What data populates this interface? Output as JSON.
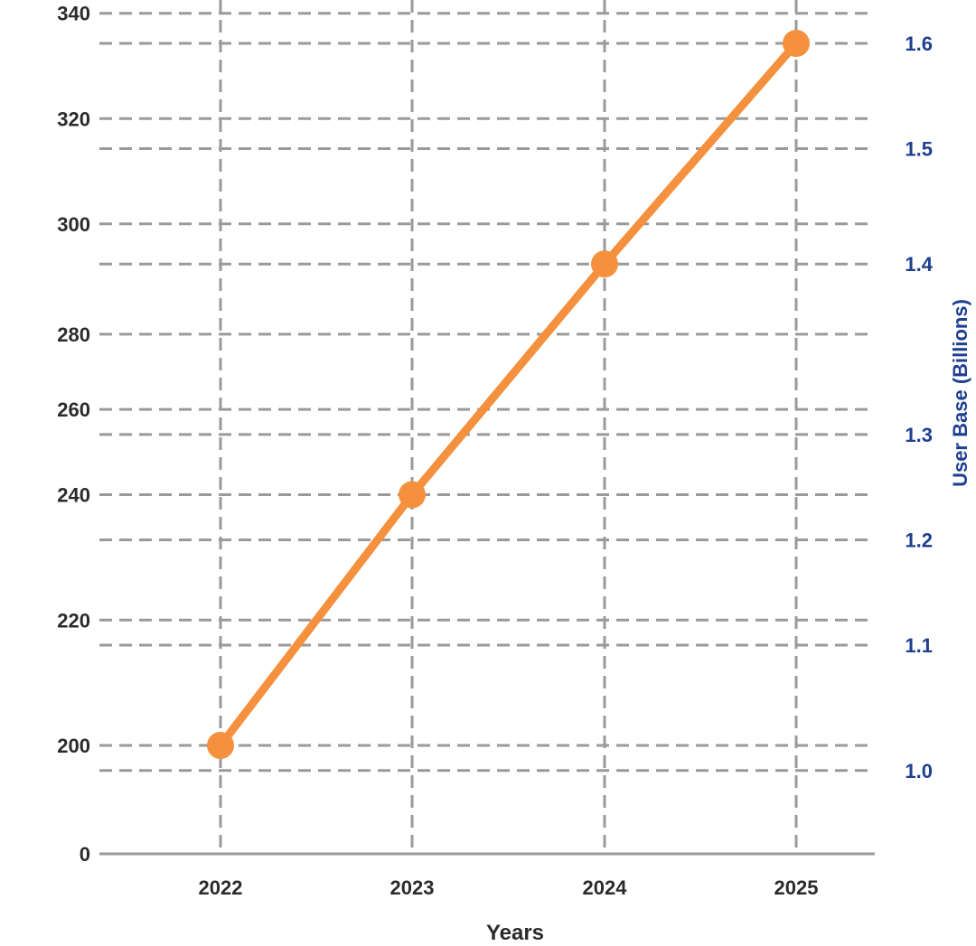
{
  "chart_data": {
    "type": "line",
    "categories": [
      "2022",
      "2023",
      "2024",
      "2025"
    ],
    "xlabel": "Years",
    "ylabel": "",
    "y2label": "User Base (Billions)",
    "left_axis": {
      "ticks": [
        {
          "label": "0",
          "value": 0
        },
        {
          "label": "200",
          "value": 1.0
        },
        {
          "label": "220",
          "value": 1.125
        },
        {
          "label": "240",
          "value": 1.25
        },
        {
          "label": "260",
          "value": 1.335
        },
        {
          "label": "280",
          "value": 1.41
        },
        {
          "label": "300",
          "value": 1.52
        },
        {
          "label": "320",
          "value": 1.625
        },
        {
          "label": "340",
          "value": 1.73
        }
      ]
    },
    "right_axis": {
      "ticks": [
        {
          "label": "1.0",
          "value": 0.975
        },
        {
          "label": "1.1",
          "value": 1.1
        },
        {
          "label": "1.2",
          "value": 1.205
        },
        {
          "label": "1.3",
          "value": 1.31
        },
        {
          "label": "1.4",
          "value": 1.48
        },
        {
          "label": "1.5",
          "value": 1.595
        },
        {
          "label": "1.6",
          "value": 1.7
        }
      ]
    },
    "series": [
      {
        "values": [
          1.0,
          1.25,
          1.48,
          1.7
        ],
        "color": "#f5913e"
      }
    ],
    "grid": true,
    "grid_style": "dashed",
    "colors": {
      "line": "#f5913e",
      "grid": "#9a9a9a",
      "left_text": "#2b2b2b",
      "right_text": "#1f3f8f",
      "axis": "#9a9a9a"
    }
  }
}
